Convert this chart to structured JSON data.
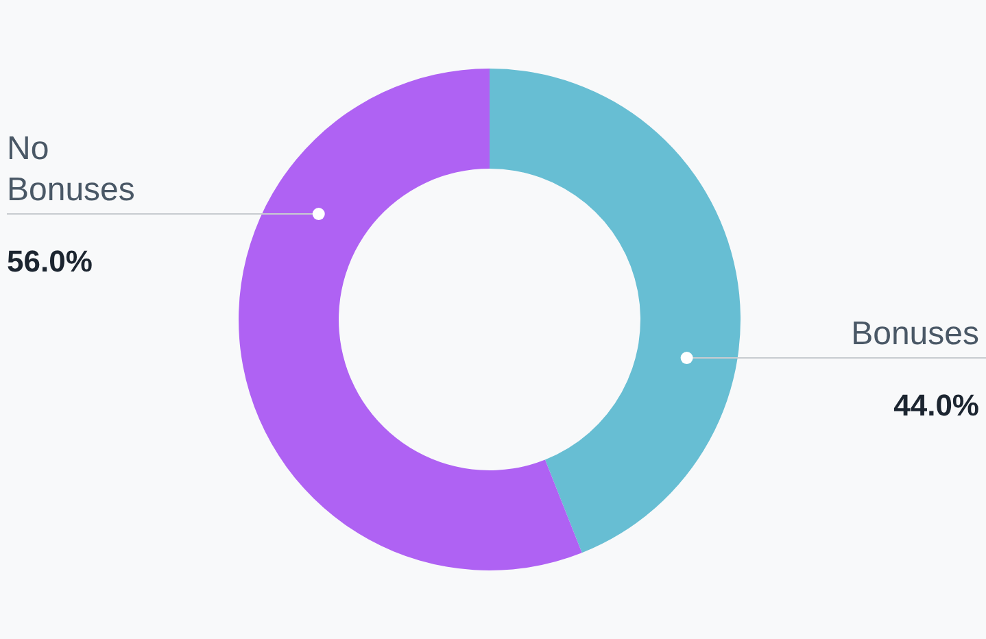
{
  "chart_data": {
    "type": "donut",
    "categories": [
      "Bonuses",
      "No Bonuses"
    ],
    "values": [
      44.0,
      56.0
    ],
    "colors": [
      "#67bed3",
      "#af62f3"
    ],
    "value_labels": [
      "44.0%",
      "56.0%"
    ]
  }
}
